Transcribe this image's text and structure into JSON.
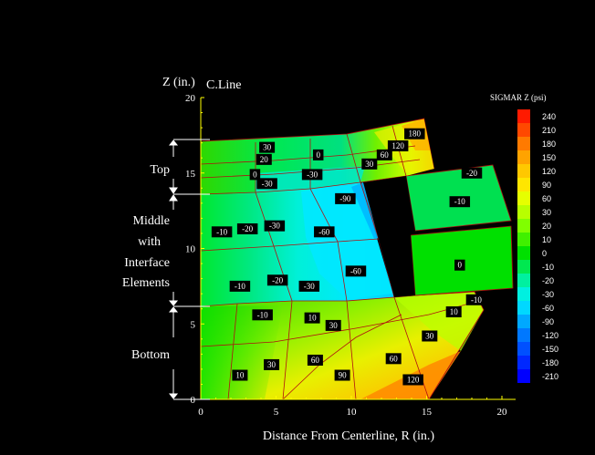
{
  "chart_data": {
    "type": "contour",
    "title": "",
    "xlabel": "Distance From Centerline, R (in.)",
    "ylabel": "Z (in.)",
    "centerline_label": "C.Line",
    "xlim": [
      0,
      21
    ],
    "ylim": [
      0,
      20
    ],
    "xticks": [
      "0",
      "5",
      "10",
      "15",
      "20"
    ],
    "yticks": [
      "0",
      "5",
      "10",
      "15",
      "20"
    ],
    "legend": {
      "title": "SIGMAR Z (psi)",
      "levels": [
        240,
        210,
        180,
        150,
        120,
        90,
        60,
        30,
        20,
        10,
        0,
        -10,
        -20,
        -30,
        -60,
        -90,
        -120,
        -150,
        -180,
        -210
      ],
      "colors": [
        "#ff1a00",
        "#ff4800",
        "#ff7a00",
        "#ffa300",
        "#ffc800",
        "#ffe600",
        "#e6ff00",
        "#b8ff00",
        "#80ff00",
        "#40f000",
        "#00e000",
        "#00e850",
        "#00f0a0",
        "#00f0e0",
        "#00d8ff",
        "#00a8ff",
        "#0078ff",
        "#0050ff",
        "#0028ff",
        "#0000ff"
      ]
    },
    "regions": [
      {
        "name": "Top",
        "z_range": [
          13.4,
          17
        ]
      },
      {
        "name": "Middle with Interface Elements",
        "z_range": [
          6,
          13.4
        ]
      },
      {
        "name": "Bottom",
        "z_range": [
          0,
          6
        ]
      }
    ],
    "region_labels": [
      "Top",
      "Middle",
      "with",
      "Interface",
      "Elements",
      "Bottom"
    ],
    "contour_labels": [
      {
        "r": 4.4,
        "z": 16.7,
        "value": "30"
      },
      {
        "r": 4.2,
        "z": 15.9,
        "value": "20"
      },
      {
        "r": 7.8,
        "z": 16.2,
        "value": "0"
      },
      {
        "r": 13.1,
        "z": 16.8,
        "value": "120"
      },
      {
        "r": 14.2,
        "z": 17.6,
        "value": "180"
      },
      {
        "r": 12.2,
        "z": 16.2,
        "value": "60"
      },
      {
        "r": 11.2,
        "z": 15.6,
        "value": "30"
      },
      {
        "r": 3.6,
        "z": 14.9,
        "value": "0"
      },
      {
        "r": 7.4,
        "z": 14.9,
        "value": "-30"
      },
      {
        "r": 4.4,
        "z": 14.3,
        "value": "-30"
      },
      {
        "r": 18.0,
        "z": 15.0,
        "value": "-20"
      },
      {
        "r": 17.2,
        "z": 13.1,
        "value": "-10"
      },
      {
        "r": 1.4,
        "z": 11.1,
        "value": "-10"
      },
      {
        "r": 3.1,
        "z": 11.3,
        "value": "-20"
      },
      {
        "r": 4.9,
        "z": 11.5,
        "value": "-30"
      },
      {
        "r": 9.6,
        "z": 13.3,
        "value": "-90"
      },
      {
        "r": 8.2,
        "z": 11.1,
        "value": "-60"
      },
      {
        "r": 10.3,
        "z": 8.5,
        "value": "-60"
      },
      {
        "r": 17.2,
        "z": 8.9,
        "value": "0"
      },
      {
        "r": 2.6,
        "z": 7.5,
        "value": "-10"
      },
      {
        "r": 5.1,
        "z": 7.9,
        "value": "-20"
      },
      {
        "r": 7.2,
        "z": 7.5,
        "value": "-30"
      },
      {
        "r": 18.3,
        "z": 6.6,
        "value": "-10"
      },
      {
        "r": 4.1,
        "z": 5.6,
        "value": "-10"
      },
      {
        "r": 7.4,
        "z": 5.4,
        "value": "10"
      },
      {
        "r": 8.8,
        "z": 4.9,
        "value": "30"
      },
      {
        "r": 15.2,
        "z": 4.2,
        "value": "30"
      },
      {
        "r": 16.8,
        "z": 5.8,
        "value": "10"
      },
      {
        "r": 2.6,
        "z": 1.6,
        "value": "10"
      },
      {
        "r": 4.7,
        "z": 2.3,
        "value": "30"
      },
      {
        "r": 7.6,
        "z": 2.6,
        "value": "60"
      },
      {
        "r": 9.4,
        "z": 1.6,
        "value": "90"
      },
      {
        "r": 12.8,
        "z": 2.7,
        "value": "60"
      },
      {
        "r": 14.1,
        "z": 1.3,
        "value": "120"
      }
    ]
  }
}
